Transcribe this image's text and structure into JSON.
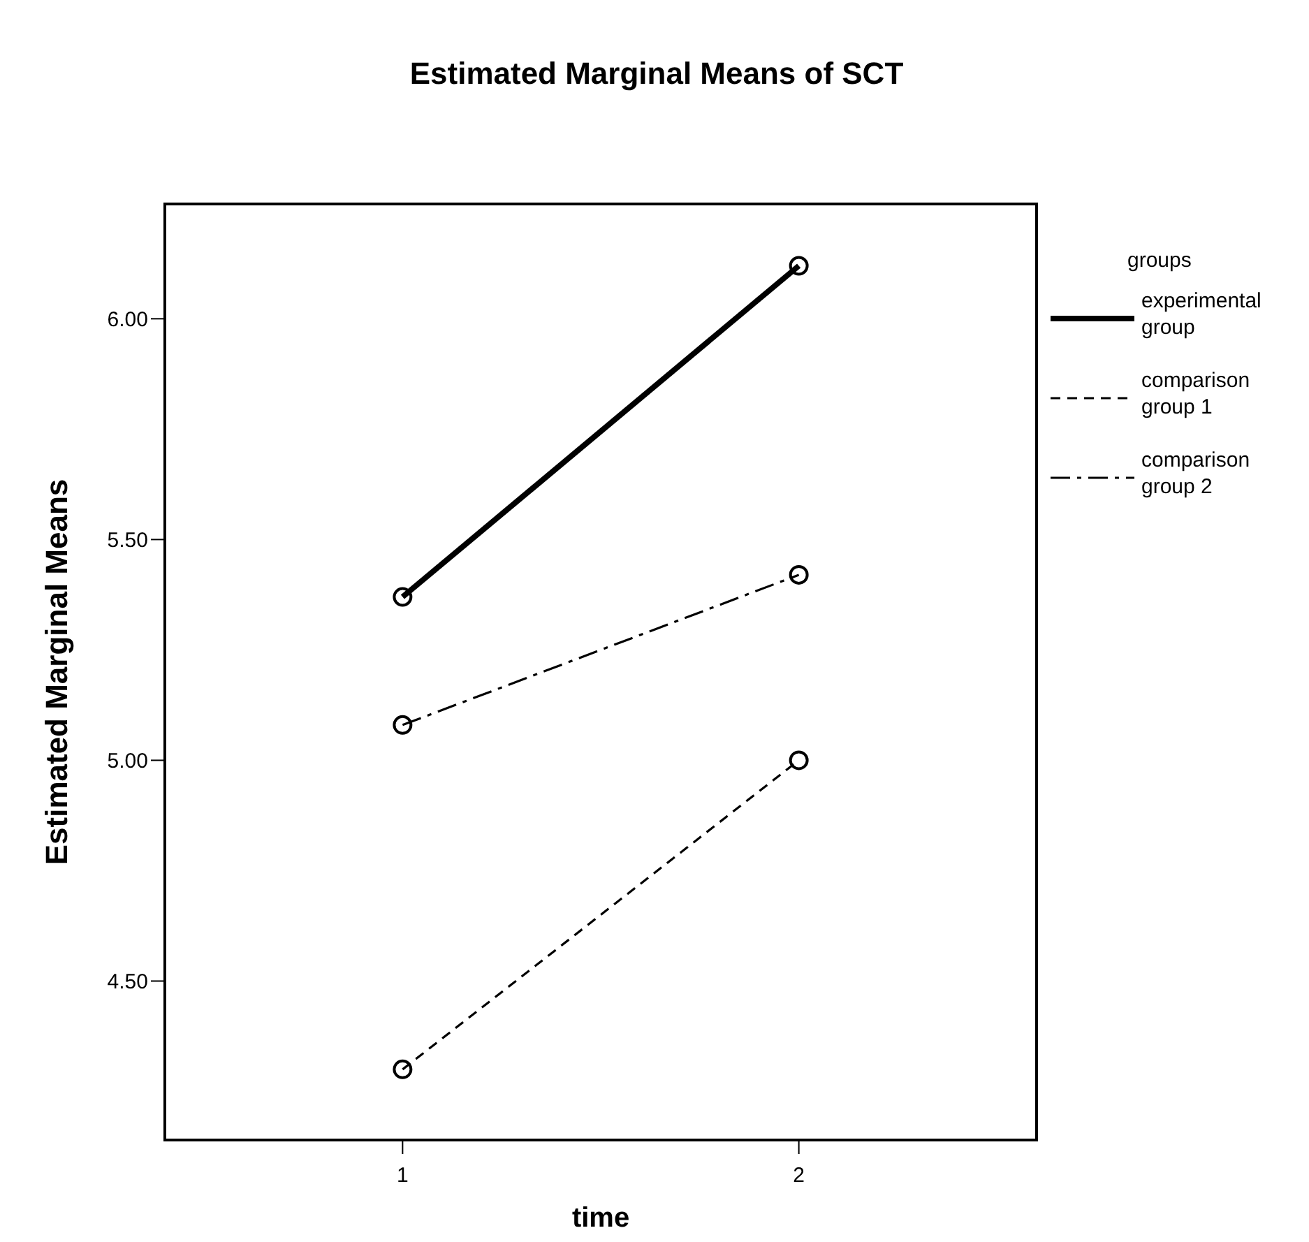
{
  "chart_data": {
    "type": "line",
    "title": "Estimated Marginal Means of SCT",
    "xlabel": "time",
    "ylabel": "Estimated Marginal Means",
    "legend_title": "groups",
    "x": [
      1,
      2
    ],
    "xlim": [
      0.4,
      2.6
    ],
    "xticks": [
      1,
      2
    ],
    "ylim": [
      4.14,
      6.26
    ],
    "yticks": [
      {
        "value": 4.5,
        "label": "4.50"
      },
      {
        "value": 5,
        "label": "5.00"
      },
      {
        "value": 5.5,
        "label": "5.50"
      },
      {
        "value": 6,
        "label": "6.00"
      }
    ],
    "series": [
      {
        "name": "experimental group",
        "color": "#000000",
        "values": [
          5.37,
          6.12
        ],
        "line_style": "solid"
      },
      {
        "name": "comparison group 1",
        "color": "#000000",
        "values": [
          4.3,
          5.0
        ],
        "line_style": "dashed"
      },
      {
        "name": "comparison group 2",
        "color": "#000000",
        "values": [
          5.08,
          5.42
        ],
        "line_style": "dashdot"
      }
    ],
    "marker": "circle",
    "grid": false,
    "legend": "right"
  }
}
